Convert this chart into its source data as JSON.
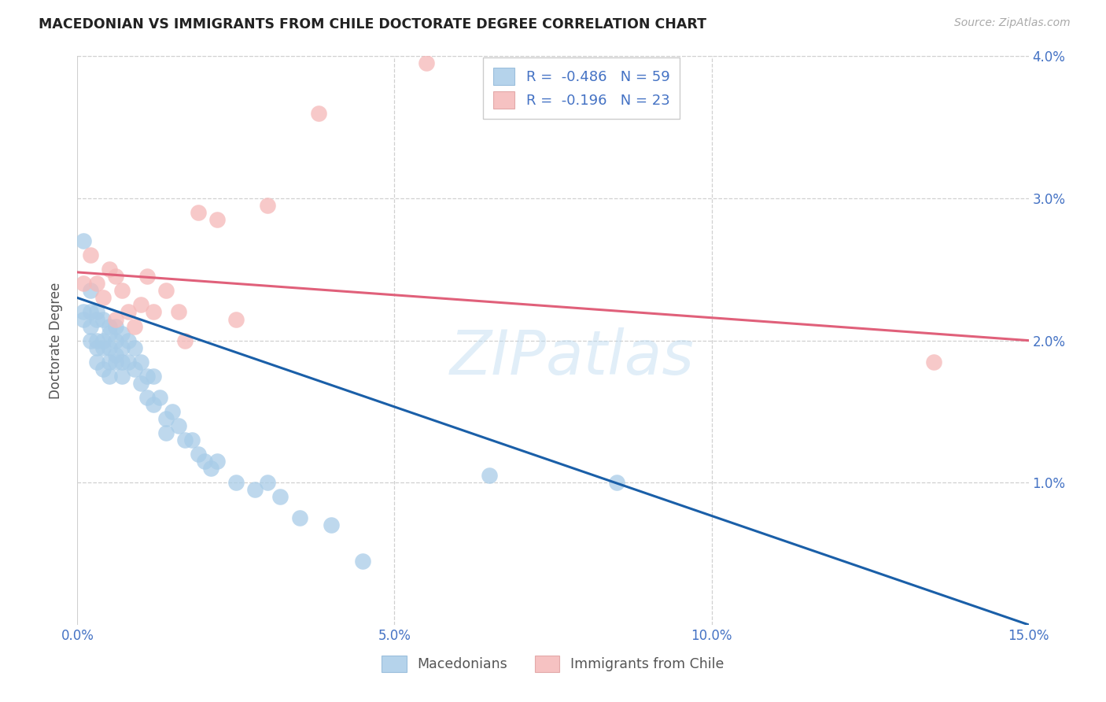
{
  "title": "MACEDONIAN VS IMMIGRANTS FROM CHILE DOCTORATE DEGREE CORRELATION CHART",
  "source": "Source: ZipAtlas.com",
  "ylabel": "Doctorate Degree",
  "xlim": [
    0.0,
    0.15
  ],
  "ylim": [
    0.0,
    0.04
  ],
  "blue_scatter_color": "#a8cce8",
  "blue_line_color": "#1a5fa8",
  "pink_scatter_color": "#f5b8b8",
  "pink_line_color": "#e0607a",
  "legend_r1": "-0.486",
  "legend_n1": "59",
  "legend_r2": "-0.196",
  "legend_n2": "23",
  "legend_label1": "Macedonians",
  "legend_label2": "Immigrants from Chile",
  "watermark": "ZIPatlas",
  "background_color": "#ffffff",
  "grid_color": "#d0d0d0",
  "axis_label_color": "#4472c4",
  "blue_line_start_y": 0.023,
  "blue_line_end_y": 0.0,
  "pink_line_start_y": 0.0248,
  "pink_line_end_y": 0.02,
  "macedonian_x": [
    0.001,
    0.001,
    0.001,
    0.002,
    0.002,
    0.002,
    0.002,
    0.003,
    0.003,
    0.003,
    0.003,
    0.003,
    0.004,
    0.004,
    0.004,
    0.004,
    0.005,
    0.005,
    0.005,
    0.005,
    0.005,
    0.006,
    0.006,
    0.006,
    0.006,
    0.007,
    0.007,
    0.007,
    0.007,
    0.008,
    0.008,
    0.009,
    0.009,
    0.01,
    0.01,
    0.011,
    0.011,
    0.012,
    0.012,
    0.013,
    0.014,
    0.014,
    0.015,
    0.016,
    0.017,
    0.018,
    0.019,
    0.02,
    0.021,
    0.022,
    0.025,
    0.028,
    0.03,
    0.032,
    0.035,
    0.04,
    0.045,
    0.065,
    0.085
  ],
  "macedonian_y": [
    0.027,
    0.022,
    0.0215,
    0.0235,
    0.022,
    0.021,
    0.02,
    0.022,
    0.0215,
    0.02,
    0.0195,
    0.0185,
    0.0215,
    0.02,
    0.0195,
    0.018,
    0.021,
    0.0205,
    0.0195,
    0.0185,
    0.0175,
    0.021,
    0.02,
    0.019,
    0.0185,
    0.0205,
    0.0195,
    0.0185,
    0.0175,
    0.02,
    0.0185,
    0.0195,
    0.018,
    0.0185,
    0.017,
    0.0175,
    0.016,
    0.0175,
    0.0155,
    0.016,
    0.0145,
    0.0135,
    0.015,
    0.014,
    0.013,
    0.013,
    0.012,
    0.0115,
    0.011,
    0.0115,
    0.01,
    0.0095,
    0.01,
    0.009,
    0.0075,
    0.007,
    0.0045,
    0.0105,
    0.01
  ],
  "chile_x": [
    0.001,
    0.002,
    0.003,
    0.004,
    0.005,
    0.006,
    0.006,
    0.007,
    0.008,
    0.009,
    0.01,
    0.011,
    0.012,
    0.014,
    0.016,
    0.017,
    0.019,
    0.022,
    0.025,
    0.03,
    0.038,
    0.055,
    0.135
  ],
  "chile_y": [
    0.024,
    0.026,
    0.024,
    0.023,
    0.025,
    0.0245,
    0.0215,
    0.0235,
    0.022,
    0.021,
    0.0225,
    0.0245,
    0.022,
    0.0235,
    0.022,
    0.02,
    0.029,
    0.0285,
    0.0215,
    0.0295,
    0.036,
    0.0395,
    0.0185
  ]
}
